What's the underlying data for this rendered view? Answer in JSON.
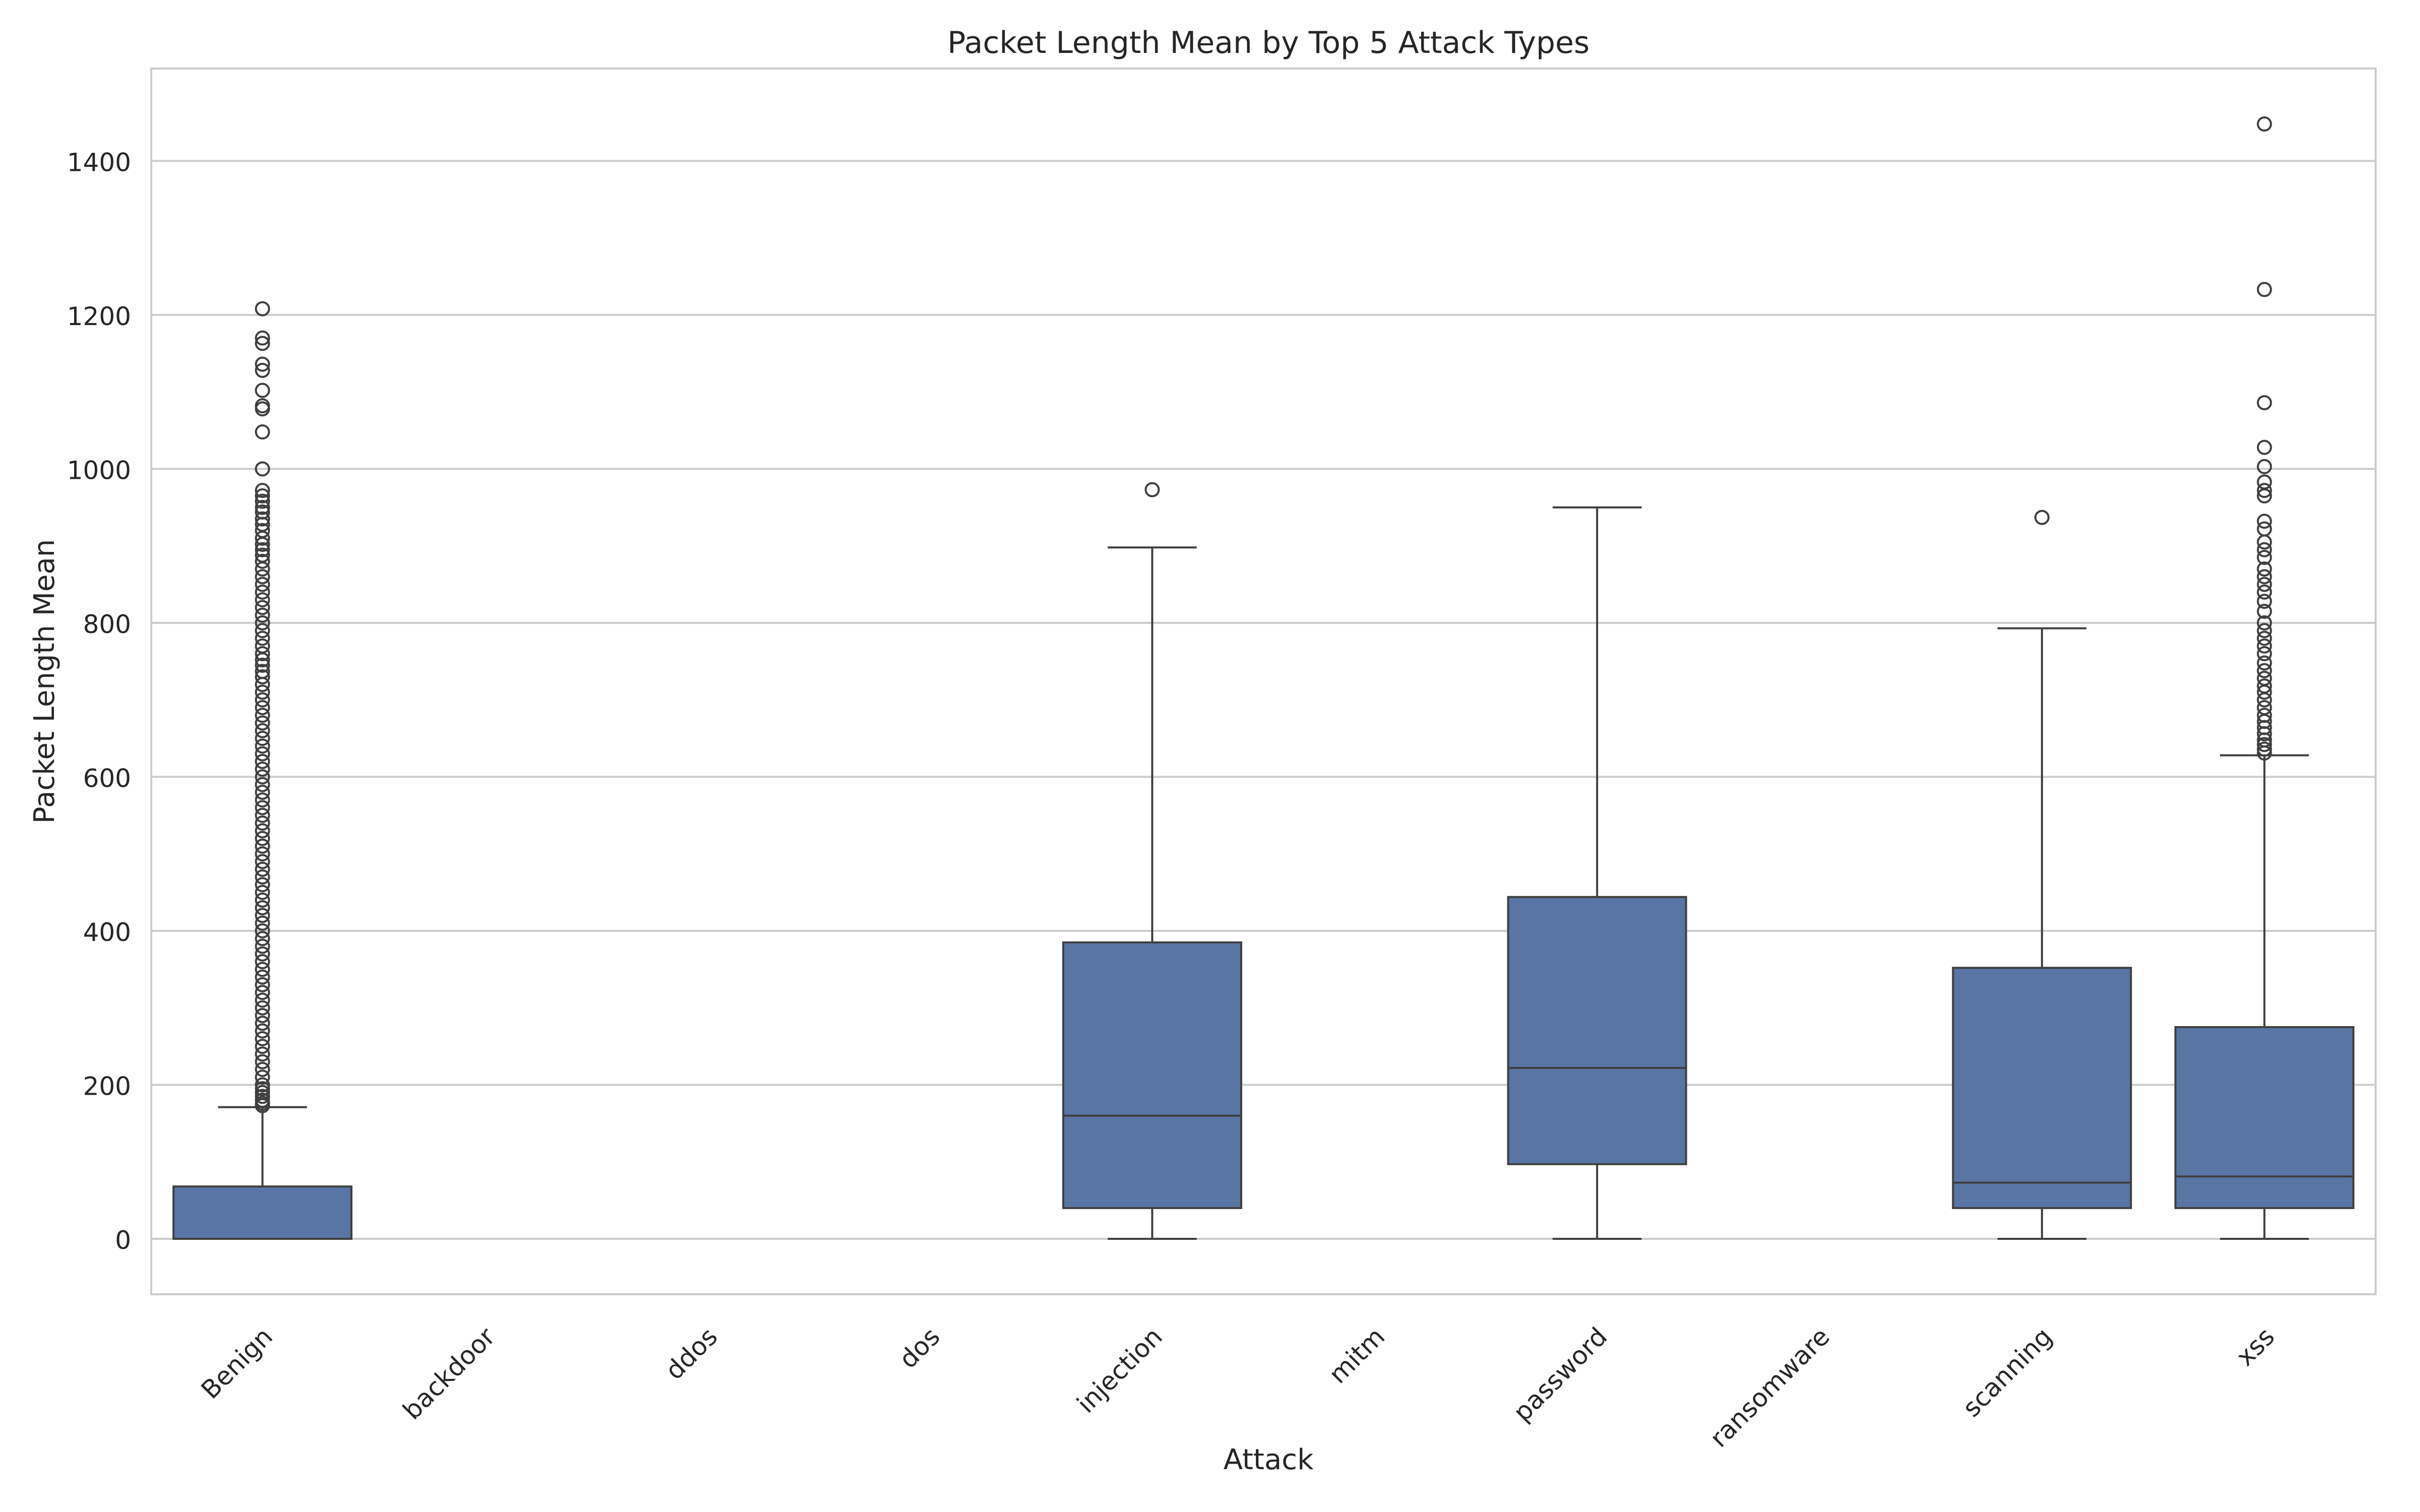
{
  "chart_data": {
    "type": "box",
    "title": "Packet Length Mean by Top 5 Attack Types",
    "xlabel": "Attack",
    "ylabel": "Packet Length Mean",
    "categories": [
      "Benign",
      "backdoor",
      "ddos",
      "dos",
      "injection",
      "mitm",
      "password",
      "ransomware",
      "scanning",
      "xss"
    ],
    "ylim": [
      -72,
      1520
    ],
    "yticks": [
      0,
      200,
      400,
      600,
      800,
      1000,
      1200,
      1400
    ],
    "grid": true,
    "box_color": "#5875a4",
    "boxes": [
      {
        "category": "Benign",
        "whisker_low": 0,
        "q1": 0,
        "median": 0,
        "q3": 68,
        "whisker_high": 171,
        "outliers": [
          1208,
          1170,
          1163,
          1136,
          1128,
          1102,
          1082,
          1078,
          1048,
          1000,
          972,
          965,
          958,
          950,
          944,
          935,
          928,
          920,
          910,
          902,
          895,
          888,
          880,
          870,
          860,
          850,
          840,
          830,
          820,
          810,
          800,
          790,
          780,
          770,
          760,
          752,
          745,
          737,
          730,
          720,
          710,
          700,
          690,
          680,
          670,
          660,
          650,
          640,
          630,
          620,
          610,
          600,
          590,
          580,
          570,
          560,
          550,
          540,
          530,
          520,
          510,
          500,
          490,
          480,
          470,
          460,
          450,
          440,
          430,
          420,
          410,
          400,
          390,
          380,
          370,
          360,
          350,
          340,
          330,
          320,
          310,
          300,
          290,
          280,
          270,
          260,
          250,
          240,
          230,
          220,
          210,
          200,
          195,
          190,
          185,
          180,
          176,
          173
        ]
      },
      {
        "category": "injection",
        "whisker_low": 0,
        "q1": 40,
        "median": 160,
        "q3": 385,
        "whisker_high": 898,
        "outliers": [
          973
        ]
      },
      {
        "category": "password",
        "whisker_low": 0,
        "q1": 97,
        "median": 222,
        "q3": 444,
        "whisker_high": 950,
        "outliers": []
      },
      {
        "category": "scanning",
        "whisker_low": 0,
        "q1": 40,
        "median": 73,
        "q3": 352,
        "whisker_high": 793,
        "outliers": [
          937
        ]
      },
      {
        "category": "xss",
        "whisker_low": 0,
        "q1": 40,
        "median": 81,
        "q3": 275,
        "whisker_high": 628,
        "outliers": [
          1448,
          1233,
          1086,
          1028,
          1003,
          983,
          972,
          965,
          932,
          922,
          905,
          895,
          885,
          870,
          860,
          850,
          840,
          828,
          815,
          800,
          790,
          780,
          770,
          760,
          748,
          738,
          728,
          718,
          710,
          700,
          690,
          680,
          672,
          664,
          656,
          648,
          642,
          636,
          631
        ]
      }
    ]
  }
}
